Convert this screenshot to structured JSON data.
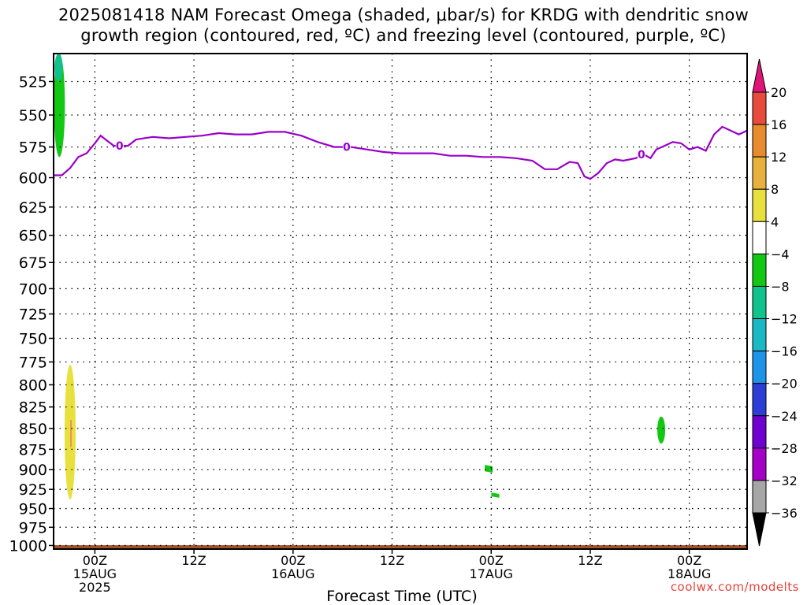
{
  "title": {
    "line1": "2025081418 NAM Forecast Omega (shaded, μbar/s) for KRDG with dendritic snow",
    "line2": "growth region (contoured, red, ºC) and freezing level (contoured, purple, ºC)"
  },
  "credit": "coolwx.com/modelts",
  "chart_data": {
    "type": "heatmap",
    "title": "2025081418 NAM Forecast Omega (shaded, μbar/s) for KRDG with dendritic snow growth region (contoured, red, ºC) and freezing level (contoured, purple, ºC)",
    "xlabel": "Forecast Time (UTC)",
    "ylabel": "",
    "y_axis": {
      "reversed": true,
      "ticks": [
        525,
        550,
        575,
        600,
        625,
        650,
        675,
        700,
        725,
        750,
        775,
        800,
        825,
        850,
        875,
        900,
        925,
        950,
        975,
        1000
      ],
      "range": [
        505,
        1005
      ]
    },
    "x_axis": {
      "unit": "forecast hour",
      "range": [
        1,
        85
      ],
      "ticks": [
        {
          "x": 6,
          "label": "00Z",
          "sublabel": "15AUG",
          "sublabel2": "2025"
        },
        {
          "x": 18,
          "label": "12Z"
        },
        {
          "x": 30,
          "label": "00Z",
          "sublabel": "16AUG"
        },
        {
          "x": 42,
          "label": "12Z"
        },
        {
          "x": 54,
          "label": "00Z",
          "sublabel": "17AUG"
        },
        {
          "x": 66,
          "label": "12Z"
        },
        {
          "x": 78,
          "label": "00Z",
          "sublabel": "18AUG"
        }
      ]
    },
    "grid": true,
    "colorbar": {
      "levels": [
        -36,
        -32,
        -28,
        -24,
        -20,
        -16,
        -12,
        -8,
        -4,
        4,
        8,
        12,
        16,
        20
      ],
      "colors": [
        "#000000",
        "#a6a6a6",
        "#a400c6",
        "#7000d0",
        "#2c3ed6",
        "#1e93e8",
        "#1ab8c4",
        "#10c28c",
        "#13c813",
        "#ffffff",
        "#e8e03c",
        "#e8b03c",
        "#e88a2e",
        "#e84a3c",
        "#e0157a"
      ],
      "position": "right"
    },
    "omega_regions": [
      {
        "value_range": [
          -8,
          -4
        ],
        "color": "#13c813",
        "x_center": 1.7,
        "p_top": 505,
        "p_bottom": 583
      },
      {
        "value_range": [
          -12,
          -8
        ],
        "color": "#10c28c",
        "x_center": 1.6,
        "p_top": 505,
        "p_bottom": 525
      },
      {
        "value_range": [
          4,
          8
        ],
        "color": "#e8e03c",
        "x_center": 3.0,
        "p_top": 778,
        "p_bottom": 938
      },
      {
        "value_range": [
          -8,
          -4
        ],
        "color": "#13c813",
        "x_center": 53.7,
        "p_top": 895,
        "p_bottom": 903
      },
      {
        "value_range": [
          -8,
          -4
        ],
        "color": "#13c813",
        "x_center": 54.5,
        "p_top": 930,
        "p_bottom": 935
      },
      {
        "value_range": [
          -8,
          -4
        ],
        "color": "#13c813",
        "x_center": 74.6,
        "p_top": 836,
        "p_bottom": 868
      }
    ],
    "freezing_level": {
      "name": "0",
      "color": "#9a00c8",
      "label": "0",
      "label_x": [
        9,
        36.5,
        72.2
      ],
      "points": [
        [
          1,
          598
        ],
        [
          2,
          598
        ],
        [
          3,
          592
        ],
        [
          4,
          583
        ],
        [
          5,
          580
        ],
        [
          6,
          572
        ],
        [
          6.7,
          566
        ],
        [
          7.5,
          570
        ],
        [
          8.3,
          574
        ],
        [
          10,
          574
        ],
        [
          11,
          569
        ],
        [
          13,
          567
        ],
        [
          15,
          568
        ],
        [
          17,
          567
        ],
        [
          19,
          566
        ],
        [
          21,
          564
        ],
        [
          23,
          565
        ],
        [
          25,
          565
        ],
        [
          27,
          563
        ],
        [
          29,
          563
        ],
        [
          31,
          566
        ],
        [
          33,
          571
        ],
        [
          35,
          575
        ],
        [
          37,
          575
        ],
        [
          39,
          577
        ],
        [
          41,
          579
        ],
        [
          43,
          580
        ],
        [
          45,
          580
        ],
        [
          47,
          580
        ],
        [
          49,
          582
        ],
        [
          51,
          582
        ],
        [
          53,
          583
        ],
        [
          55,
          583
        ],
        [
          57,
          584
        ],
        [
          59,
          586
        ],
        [
          60.5,
          593
        ],
        [
          62,
          593
        ],
        [
          63.5,
          587
        ],
        [
          64.5,
          588
        ],
        [
          65.3,
          599
        ],
        [
          66,
          601
        ],
        [
          67,
          596
        ],
        [
          68,
          588
        ],
        [
          69,
          585
        ],
        [
          70,
          586
        ],
        [
          71.5,
          584
        ],
        [
          72.5,
          581
        ],
        [
          73.3,
          584
        ],
        [
          74,
          577
        ],
        [
          75,
          574
        ],
        [
          76,
          571
        ],
        [
          77,
          572
        ],
        [
          78,
          577
        ],
        [
          79,
          575
        ],
        [
          80,
          578
        ],
        [
          81,
          565
        ],
        [
          82,
          559
        ],
        [
          83,
          562
        ],
        [
          84,
          565
        ],
        [
          85,
          562
        ]
      ]
    },
    "dendritic_region": {
      "color": "#e87a6c",
      "x": 3.1,
      "p_top": 840,
      "p_bottom": 872
    },
    "terrain_fill": {
      "color": "#a0522d",
      "surface_pressure": 1004,
      "bottom": 1005
    }
  }
}
